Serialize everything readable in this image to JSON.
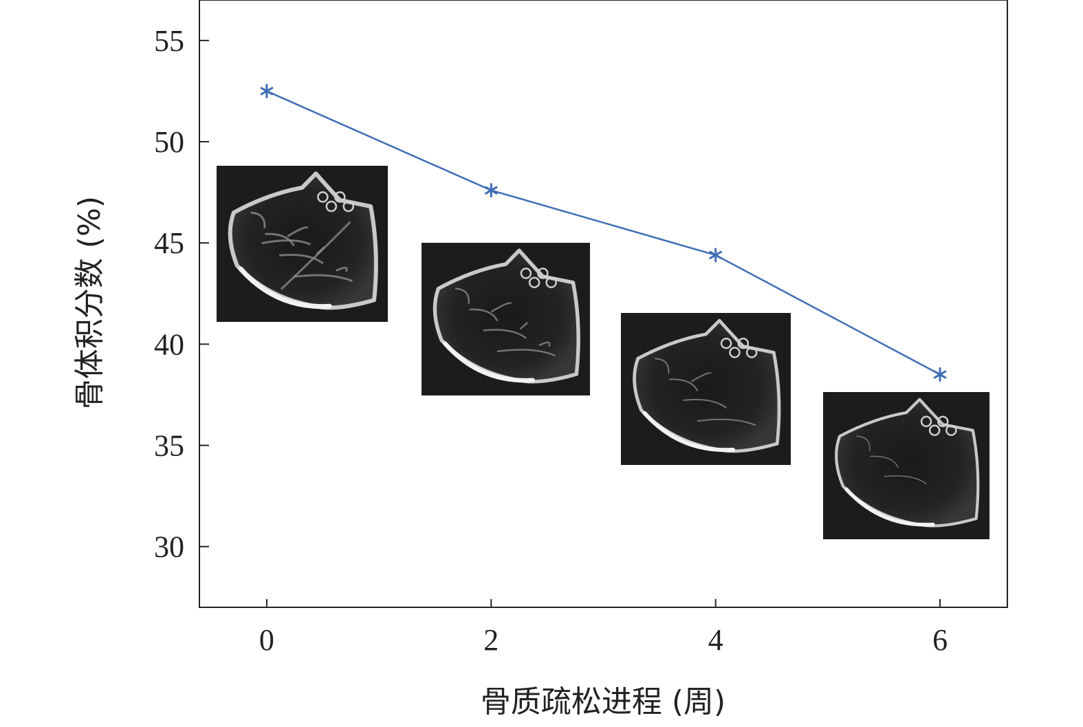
{
  "chart_data": {
    "type": "line",
    "xlabel": "骨质疏松进程 (周)",
    "ylabel": "骨体积分数 (%)",
    "xlim": [
      -0.6,
      6.6
    ],
    "ylim": [
      27,
      57
    ],
    "x_ticks": [
      "0",
      "2",
      "4",
      "6"
    ],
    "y_ticks": [
      "30",
      "35",
      "40",
      "45",
      "50",
      "55"
    ],
    "x_tick_values": [
      0,
      2,
      4,
      6
    ],
    "y_tick_values": [
      30,
      35,
      40,
      45,
      50,
      55
    ],
    "series": [
      {
        "x": [
          0,
          2,
          4,
          6
        ],
        "y": [
          52.5,
          47.6,
          44.4,
          38.5
        ],
        "color": "#3f6db5",
        "marker": "asterisk"
      }
    ],
    "insets": [
      {
        "kind": "micro-CT cross-section image",
        "x_week": 0
      },
      {
        "kind": "micro-CT cross-section image",
        "x_week": 2
      },
      {
        "kind": "micro-CT cross-section image",
        "x_week": 4
      },
      {
        "kind": "micro-CT cross-section image",
        "x_week": 6
      }
    ],
    "grid": false,
    "legend": "none",
    "frame": "box"
  }
}
